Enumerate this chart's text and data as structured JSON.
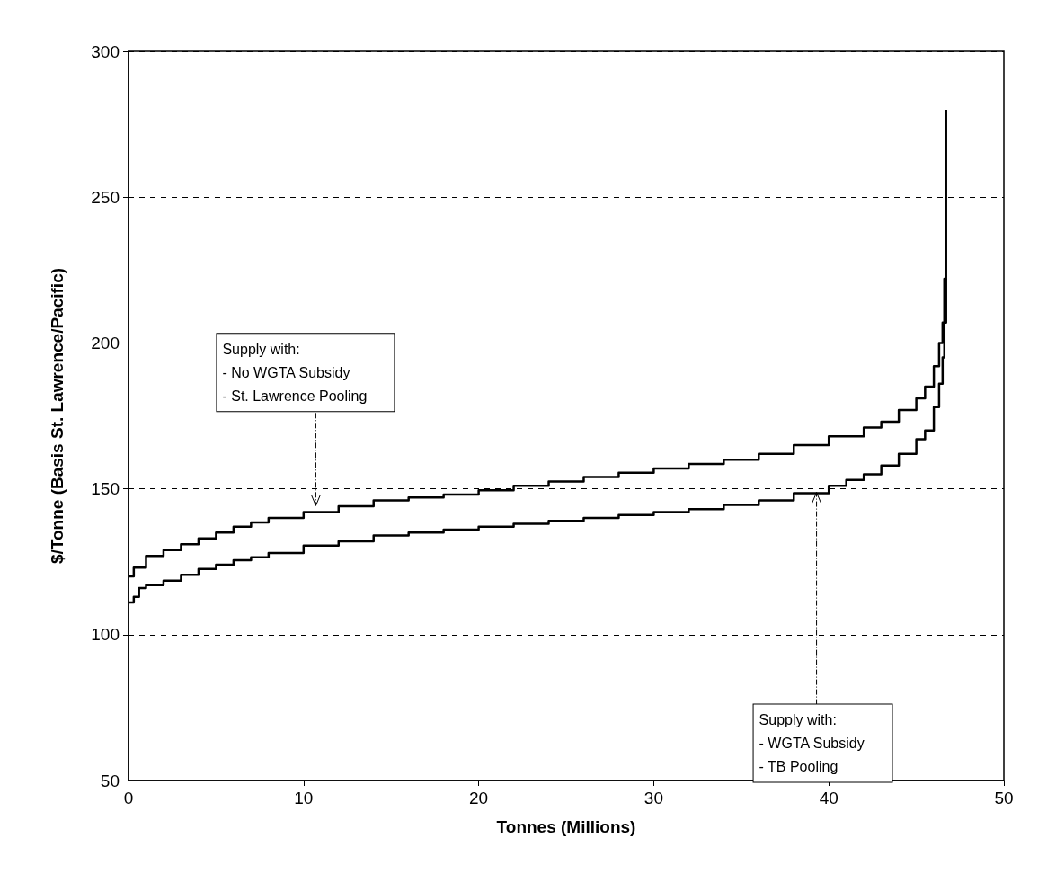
{
  "chart_data": {
    "type": "step",
    "xlabel": "Tonnes (Millions)",
    "ylabel": "$/Tonne (Basis St. Lawrence/Pacific)",
    "xlim": [
      0,
      50
    ],
    "xticks": [
      0,
      10,
      20,
      30,
      40,
      50
    ],
    "ylim": [
      50,
      300
    ],
    "yticks": [
      50,
      100,
      150,
      200,
      250,
      300
    ],
    "grid": "y",
    "marker": "none",
    "line_style": "solid",
    "series": [
      {
        "color": "#000000",
        "x": [
          0,
          0.3,
          1,
          2,
          3,
          4,
          5,
          6,
          7,
          8,
          10,
          12,
          14,
          16,
          18,
          20,
          22,
          24,
          26,
          28,
          30,
          32,
          34,
          36,
          38,
          40,
          42,
          43,
          44,
          45,
          45.5,
          46,
          46.3,
          46.5,
          46.6,
          46.7
        ],
        "values": [
          120,
          123,
          127,
          129,
          131,
          133,
          135,
          137,
          138.5,
          140,
          142,
          144,
          146,
          147,
          148,
          149.5,
          151,
          152.5,
          154,
          155.5,
          157,
          158.5,
          160,
          162,
          165,
          168,
          171,
          173,
          177,
          181,
          185,
          192,
          200,
          207,
          222,
          280
        ]
      },
      {
        "color": "#000000",
        "x": [
          0,
          0.3,
          0.6,
          1,
          2,
          3,
          4,
          5,
          6,
          7,
          8,
          10,
          12,
          14,
          16,
          18,
          20,
          22,
          24,
          26,
          28,
          30,
          32,
          34,
          36,
          38,
          40,
          41,
          42,
          43,
          44,
          45,
          45.5,
          46,
          46.3,
          46.5,
          46.6,
          46.7
        ],
        "values": [
          111,
          113,
          116,
          117,
          118.5,
          120.5,
          122.5,
          124,
          125.5,
          126.5,
          128,
          130.5,
          132,
          134,
          135,
          136,
          137,
          138,
          139,
          140,
          141,
          142,
          143,
          144.5,
          146,
          148.5,
          151,
          153,
          155,
          158,
          162,
          167,
          170,
          178,
          186,
          195,
          207,
          222
        ]
      }
    ],
    "annotations": [
      {
        "text": "Supply with:\n- No WGTA Subsidy\n- St. Lawrence Pooling",
        "x": 10.7,
        "y": 143
      },
      {
        "text": "Supply with:\n- WGTA Subsidy\n- TB Pooling",
        "x": 39.3,
        "y": 150
      }
    ]
  }
}
